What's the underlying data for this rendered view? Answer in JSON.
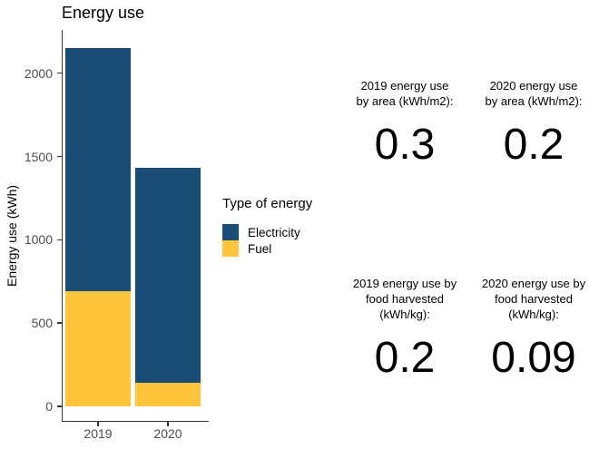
{
  "chart_data": {
    "type": "bar",
    "stacked": true,
    "title": "Energy use",
    "ylabel": "Energy use (kWh)",
    "xlabel": "",
    "categories": [
      "2019",
      "2020"
    ],
    "series": [
      {
        "name": "Electricity",
        "color": "#1A4D75",
        "values": [
          1460,
          1290
        ]
      },
      {
        "name": "Fuel",
        "color": "#FFC63D",
        "values": [
          690,
          140
        ]
      }
    ],
    "totals": [
      2150,
      1430
    ],
    "yticks": [
      0,
      500,
      1000,
      1500,
      2000
    ],
    "ylim": [
      0,
      2260
    ],
    "grid": false,
    "legend_title": "Type of energy",
    "legend_position": "right"
  },
  "stats": [
    {
      "label_lines": [
        "2019 energy use",
        "by area (kWh/m2):"
      ],
      "value": "0.3"
    },
    {
      "label_lines": [
        "2020 energy use",
        "by area (kWh/m2):"
      ],
      "value": "0.2"
    },
    {
      "label_lines": [
        "2019 energy use by",
        "food harvested",
        "(kWh/kg):"
      ],
      "value": "0.2"
    },
    {
      "label_lines": [
        "2020 energy use by",
        "food harvested",
        "(kWh/kg):"
      ],
      "value": "0.09"
    }
  ],
  "colors": {
    "background": "#FFFFFF",
    "axis_line": "#333333",
    "axis_text": "#4D4D4D",
    "text": "#000000",
    "electricity": "#1A4D75",
    "fuel": "#FFC63D"
  }
}
